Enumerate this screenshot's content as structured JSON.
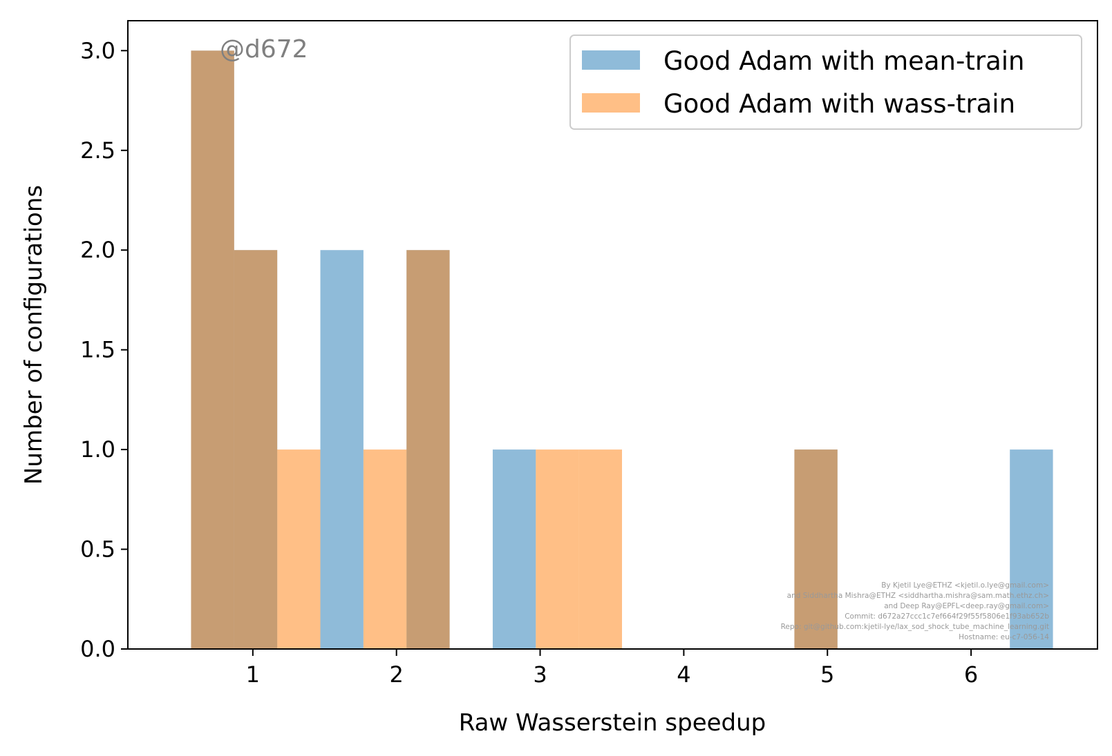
{
  "chart_data": {
    "type": "bar",
    "subtype": "overlapping-histogram",
    "xlabel": "Raw Wasserstein speedup",
    "ylabel": "Number of configurations",
    "xlim": [
      0.13,
      6.88
    ],
    "ylim": [
      0,
      3.15
    ],
    "x_ticks": [
      1,
      2,
      3,
      4,
      5,
      6
    ],
    "x_tick_labels": [
      "1",
      "2",
      "3",
      "4",
      "5",
      "6"
    ],
    "y_ticks": [
      0,
      0.5,
      1,
      1.5,
      2,
      2.5,
      3
    ],
    "y_tick_labels": [
      "0.0",
      "0.5",
      "1.0",
      "1.5",
      "2.0",
      "2.5",
      "3.0"
    ],
    "grid": false,
    "legend_position": "top-right",
    "series": [
      {
        "name": "Good Adam with mean-train",
        "color": "#1f77b4",
        "alpha": 0.5,
        "bins": [
          {
            "x0": 0.57,
            "x1": 0.87,
            "count": 3
          },
          {
            "x0": 0.87,
            "x1": 1.17,
            "count": 2
          },
          {
            "x0": 1.47,
            "x1": 1.77,
            "count": 2
          },
          {
            "x0": 2.07,
            "x1": 2.37,
            "count": 2
          },
          {
            "x0": 2.67,
            "x1": 2.97,
            "count": 1
          },
          {
            "x0": 4.77,
            "x1": 5.07,
            "count": 1
          },
          {
            "x0": 6.27,
            "x1": 6.57,
            "count": 1
          }
        ]
      },
      {
        "name": "Good Adam with wass-train",
        "color": "#ff7f0e",
        "alpha": 0.5,
        "bins": [
          {
            "x0": 0.57,
            "x1": 0.87,
            "count": 3
          },
          {
            "x0": 0.87,
            "x1": 1.17,
            "count": 2
          },
          {
            "x0": 1.17,
            "x1": 1.47,
            "count": 1
          },
          {
            "x0": 1.77,
            "x1": 2.07,
            "count": 1
          },
          {
            "x0": 2.07,
            "x1": 2.37,
            "count": 2
          },
          {
            "x0": 2.97,
            "x1": 3.27,
            "count": 1
          },
          {
            "x0": 3.27,
            "x1": 3.57,
            "count": 1
          },
          {
            "x0": 4.77,
            "x1": 5.07,
            "count": 1
          }
        ]
      }
    ],
    "annotation": "@d672",
    "credits": [
      "By Kjetil Lye@ETHZ <kjetil.o.lye@gmail.com>",
      "and Siddhartha Mishra@ETHZ <siddhartha.mishra@sam.math.ethz.ch>",
      "and Deep Ray@EPFL<deep.ray@gmail.com>",
      "Commit: d672a27ccc1c7ef664f29f55f5806e1f93ab652b",
      "Repo: git@github.com:kjetil-lye/lax_sod_shock_tube_machine_learning.git",
      "Hostname: eu-c7-056-14"
    ]
  }
}
